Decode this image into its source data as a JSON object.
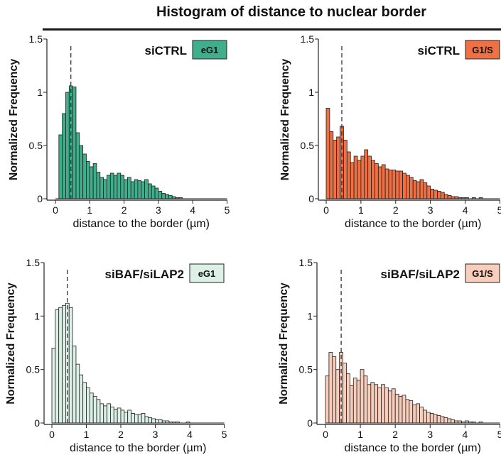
{
  "page": {
    "title": "Histogram of distance to nuclear border"
  },
  "chart_data": [
    {
      "type": "bar",
      "condition": "siCTRL",
      "phase": "eG1",
      "color": "#3fae8b",
      "xlabel": "distance to the border (µm)",
      "ylabel": "Normalized Frequency",
      "xlim": [
        0,
        5
      ],
      "ylim": [
        0,
        1.5
      ],
      "xticks": [
        0,
        1,
        2,
        3,
        4,
        5
      ],
      "yticks": [
        0,
        0.5,
        1,
        1.5
      ],
      "ytick_labels": [
        "0",
        "0.5",
        "1",
        "1.5"
      ],
      "bin_start": 0.0,
      "bin_width": 0.1,
      "values": [
        0,
        0.6,
        0.8,
        1.0,
        1.06,
        1.05,
        0.62,
        0.5,
        0.42,
        0.35,
        0.3,
        0.33,
        0.25,
        0.2,
        0.18,
        0.22,
        0.24,
        0.22,
        0.24,
        0.22,
        0.18,
        0.2,
        0.16,
        0.18,
        0.17,
        0.16,
        0.18,
        0.14,
        0.12,
        0.1,
        0.07,
        0.05,
        0.04,
        0.03,
        0.02,
        0.01,
        0.01,
        0,
        0,
        0,
        0,
        0,
        0,
        0,
        0,
        0,
        0,
        0,
        0,
        0
      ],
      "median_line": 0.45
    },
    {
      "type": "bar",
      "condition": "siCTRL",
      "phase": "G1/S",
      "color": "#ee7043",
      "xlabel": "distance to the border (µm)",
      "ylabel": "Normalized Frequency",
      "xlim": [
        0,
        5
      ],
      "ylim": [
        0,
        1.5
      ],
      "xticks": [
        0,
        1,
        2,
        3,
        4,
        5
      ],
      "yticks": [
        0,
        0.5,
        1,
        1.5
      ],
      "ytick_labels": [
        "0",
        "0.5",
        "1",
        "1.5"
      ],
      "bin_start": 0.0,
      "bin_width": 0.1,
      "values": [
        0.85,
        0.63,
        0.55,
        0.58,
        0.68,
        0.55,
        0.44,
        0.34,
        0.4,
        0.36,
        0.4,
        0.46,
        0.4,
        0.36,
        0.33,
        0.3,
        0.32,
        0.28,
        0.27,
        0.27,
        0.26,
        0.26,
        0.24,
        0.22,
        0.2,
        0.17,
        0.16,
        0.18,
        0.15,
        0.12,
        0.09,
        0.08,
        0.07,
        0.06,
        0.04,
        0.03,
        0.02,
        0.02,
        0.01,
        0.01,
        0.01,
        0,
        0.01,
        0,
        0.01,
        0,
        0,
        0,
        0,
        0
      ],
      "median_line": 0.45
    },
    {
      "type": "bar",
      "condition": "siBAF/siLAP2",
      "phase": "eG1",
      "color": "#dcf0e8",
      "xlabel": "distance to the border (µm)",
      "ylabel": "Normalized Frequency",
      "xlim": [
        0,
        5
      ],
      "ylim": [
        0,
        1.5
      ],
      "xticks": [
        0,
        1,
        2,
        3,
        4,
        5
      ],
      "yticks": [
        0,
        0.5,
        1,
        1.5
      ],
      "ytick_labels": [
        "0",
        "0.5",
        "1",
        "1.5"
      ],
      "bin_start": 0.0,
      "bin_width": 0.1,
      "values": [
        0.7,
        1.06,
        1.08,
        1.1,
        1.12,
        1.08,
        0.72,
        0.55,
        0.45,
        0.38,
        0.33,
        0.28,
        0.25,
        0.22,
        0.18,
        0.16,
        0.18,
        0.15,
        0.13,
        0.14,
        0.12,
        0.1,
        0.12,
        0.09,
        0.08,
        0.08,
        0.09,
        0.06,
        0.05,
        0.04,
        0.03,
        0.03,
        0.02,
        0.02,
        0.01,
        0.01,
        0.01,
        0,
        0,
        0.01,
        0,
        0,
        0,
        0,
        0,
        0,
        0,
        0,
        0,
        0
      ],
      "median_line": 0.45
    },
    {
      "type": "bar",
      "condition": "siBAF/siLAP2",
      "phase": "G1/S",
      "color": "#f8cdbb",
      "xlabel": "distance to the border (µm)",
      "ylabel": "Normalized Frequency",
      "xlim": [
        0,
        5
      ],
      "ylim": [
        0,
        1.5
      ],
      "xticks": [
        0,
        1,
        2,
        3,
        4,
        5
      ],
      "yticks": [
        0,
        0.5,
        1,
        1.5
      ],
      "ytick_labels": [
        "0",
        "0.5",
        "1",
        "1.5"
      ],
      "bin_start": 0.0,
      "bin_width": 0.1,
      "values": [
        0.44,
        0.66,
        0.62,
        0.5,
        0.66,
        0.56,
        0.46,
        0.35,
        0.42,
        0.4,
        0.5,
        0.44,
        0.36,
        0.38,
        0.36,
        0.33,
        0.36,
        0.33,
        0.3,
        0.32,
        0.27,
        0.25,
        0.26,
        0.22,
        0.21,
        0.17,
        0.18,
        0.15,
        0.12,
        0.1,
        0.09,
        0.08,
        0.07,
        0.06,
        0.05,
        0.04,
        0.03,
        0.02,
        0.02,
        0.01,
        0.02,
        0.01,
        0.01,
        0,
        0.01,
        0,
        0,
        0,
        0,
        0
      ],
      "median_line": 0.45
    }
  ]
}
